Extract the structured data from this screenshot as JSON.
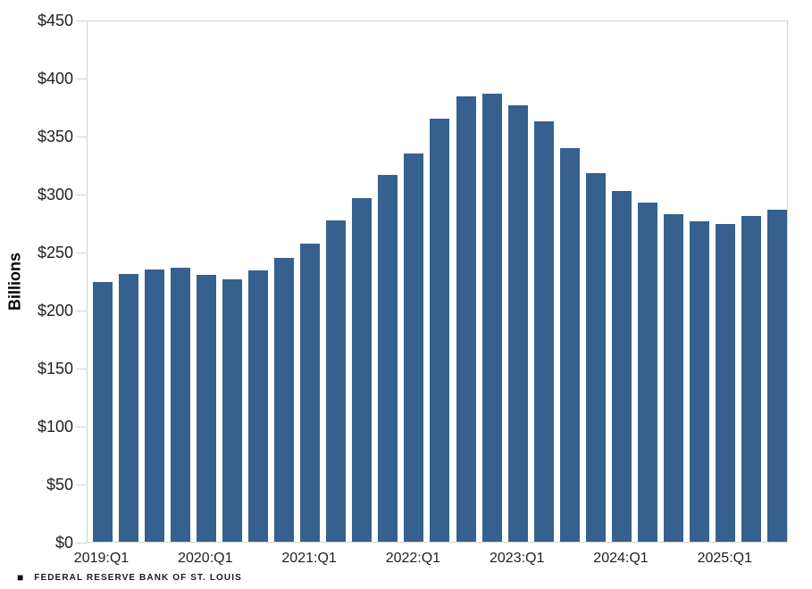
{
  "chart_data": {
    "type": "bar",
    "title": "",
    "ylabel": "Billions",
    "ylim": [
      0,
      450
    ],
    "grid": false,
    "legend_position": "none",
    "y_tick_labels": [
      "$450",
      "$400",
      "$350",
      "$300",
      "$250",
      "$200",
      "$150",
      "$100",
      "$50",
      "$0"
    ],
    "x_axis_labels": [
      "2019:Q1",
      "2020:Q1",
      "2021:Q1",
      "2022:Q1",
      "2023:Q1",
      "2024:Q1",
      "2025:Q1"
    ],
    "categories": [
      "2019:Q1",
      "2019:Q2",
      "2019:Q3",
      "2019:Q4",
      "2020:Q1",
      "2020:Q2",
      "2020:Q3",
      "2020:Q4",
      "2021:Q1",
      "2021:Q2",
      "2021:Q3",
      "2021:Q4",
      "2022:Q1",
      "2022:Q2",
      "2022:Q3",
      "2022:Q4",
      "2023:Q1",
      "2023:Q2",
      "2023:Q3",
      "2023:Q4",
      "2024:Q1",
      "2024:Q2",
      "2024:Q3",
      "2024:Q4",
      "2025:Q1",
      "2025:Q2",
      "2025:Q3"
    ],
    "values": [
      224,
      231,
      235,
      236,
      230,
      226,
      234,
      245,
      257,
      277,
      296,
      316,
      335,
      365,
      384,
      386,
      376,
      362,
      339,
      318,
      302,
      292,
      282,
      276,
      274,
      281,
      286
    ],
    "bar_color": "#36618e",
    "axis_color": "#d2d2d2"
  },
  "footer": {
    "bullet": "■",
    "source_label": "FEDERAL RESERVE BANK OF ST. LOUIS"
  }
}
